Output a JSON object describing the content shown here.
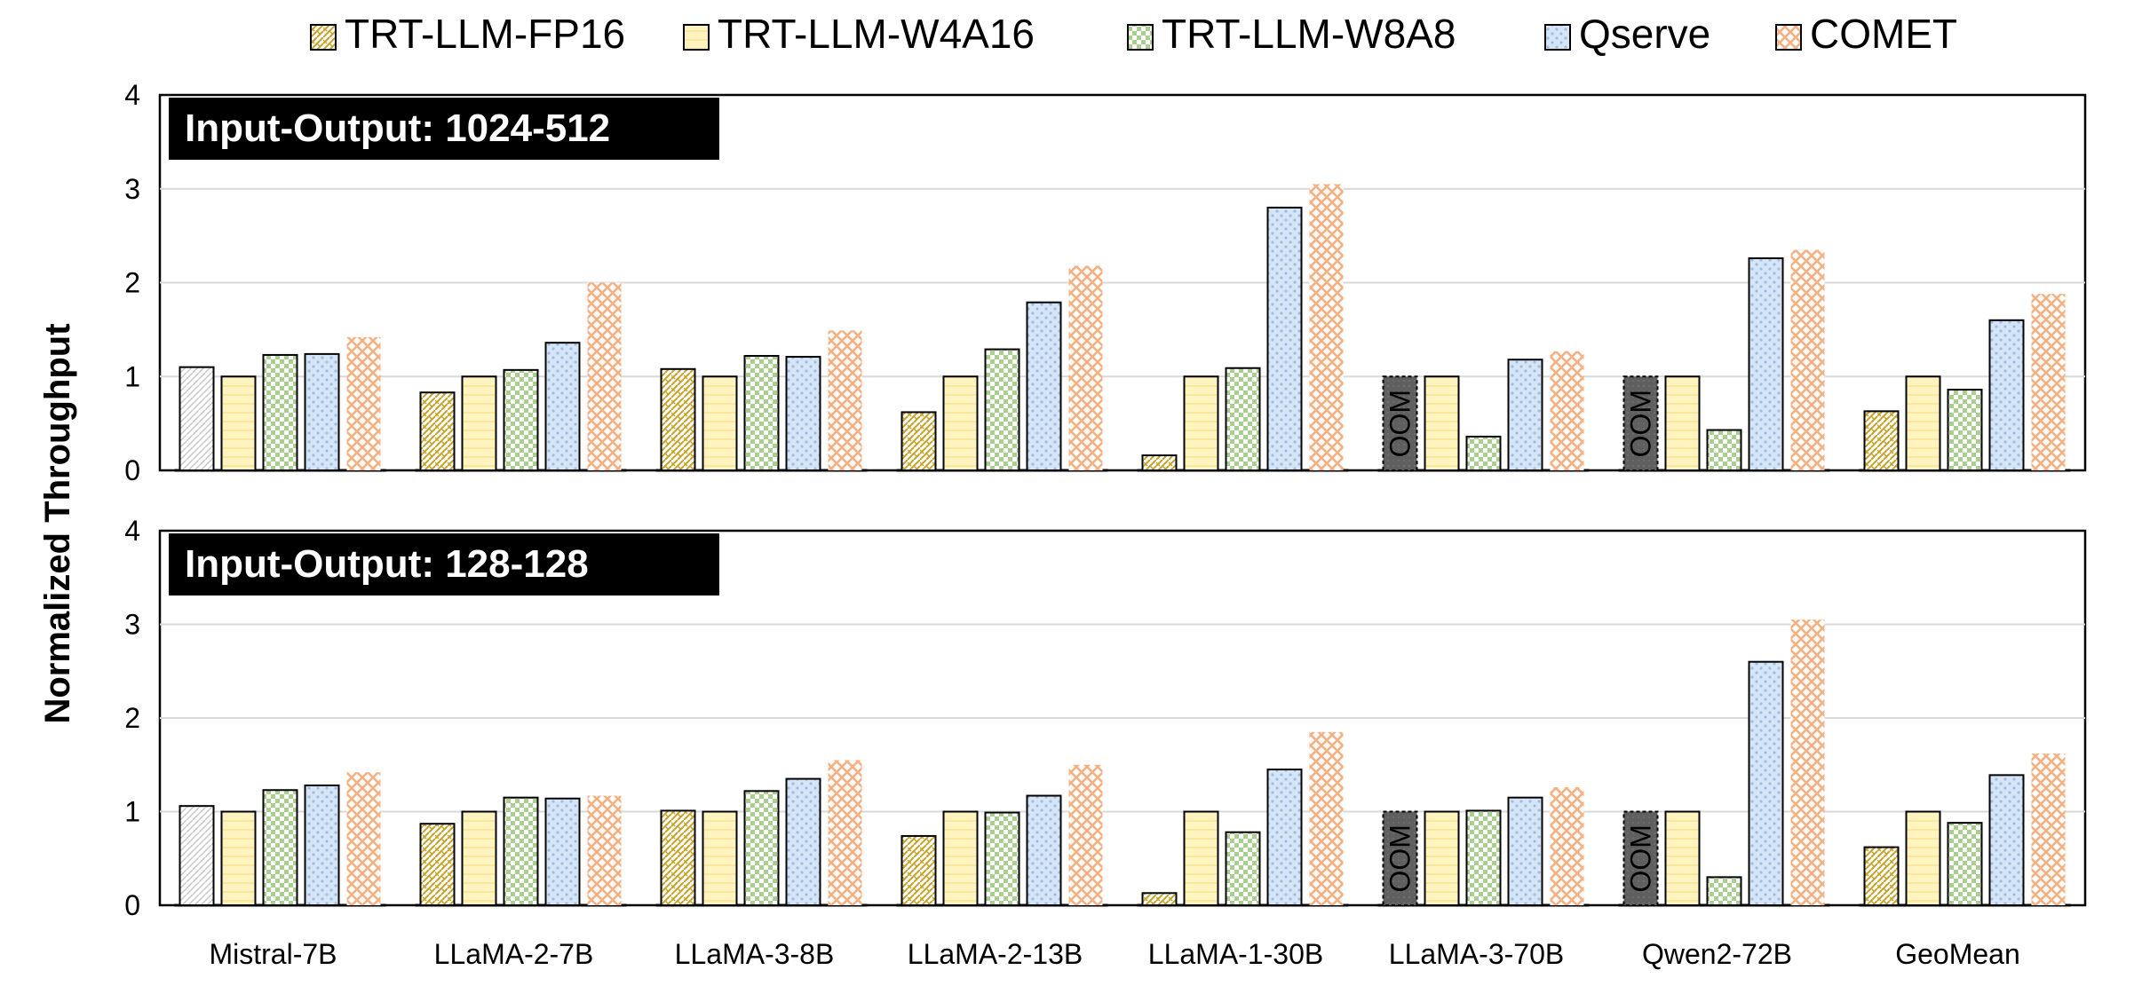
{
  "legend": [
    {
      "name": "TRT-LLM-FP16",
      "pattern": "pat-fp16",
      "swatch_color": "#c9a227"
    },
    {
      "name": "TRT-LLM-W4A16",
      "pattern": "pat-w4a16",
      "swatch_color": "#fff2b3"
    },
    {
      "name": "TRT-LLM-W8A8",
      "pattern": "pat-w8a8",
      "swatch_color": "#a8cf8e"
    },
    {
      "name": "Qserve",
      "pattern": "pat-qserve",
      "swatch_color": "#cfe0f3"
    },
    {
      "name": "COMET",
      "pattern": "pat-comet",
      "swatch_color": "#f4b183"
    }
  ],
  "y_axis_label": "Normalized Throughput",
  "oom_label": "OOM",
  "chart_data": [
    {
      "type": "bar",
      "title": "Input-Output: 1024-512",
      "ylim": [
        0,
        4
      ],
      "yticks": [
        "0",
        "1",
        "2",
        "3",
        "4"
      ],
      "grid": true,
      "legend_position": "top",
      "categories": [
        "Mistral-7B",
        "LLaMA-2-7B",
        "LLaMA-3-8B",
        "LLaMA-2-13B",
        "LLaMA-1-30B",
        "LLaMA-3-70B",
        "Qwen2-72B",
        "GeoMean"
      ],
      "series": [
        {
          "name": "TRT-LLM-FP16",
          "values": [
            1.1,
            0.83,
            1.08,
            0.62,
            0.16,
            "OOM",
            "OOM",
            0.63
          ]
        },
        {
          "name": "TRT-LLM-W4A16",
          "values": [
            1.0,
            1.0,
            1.0,
            1.0,
            1.0,
            1.0,
            1.0,
            1.0
          ]
        },
        {
          "name": "TRT-LLM-W8A8",
          "values": [
            1.23,
            1.07,
            1.22,
            1.29,
            1.09,
            0.36,
            0.43,
            0.86
          ]
        },
        {
          "name": "Qserve",
          "values": [
            1.24,
            1.36,
            1.21,
            1.79,
            2.8,
            1.18,
            2.26,
            1.6
          ]
        },
        {
          "name": "COMET",
          "values": [
            1.42,
            2.0,
            1.49,
            2.18,
            3.05,
            1.27,
            2.35,
            1.88
          ]
        }
      ]
    },
    {
      "type": "bar",
      "title": "Input-Output: 128-128",
      "ylim": [
        0,
        4
      ],
      "yticks": [
        "0",
        "1",
        "2",
        "3",
        "4"
      ],
      "grid": true,
      "legend_position": "top",
      "categories": [
        "Mistral-7B",
        "LLaMA-2-7B",
        "LLaMA-3-8B",
        "LLaMA-2-13B",
        "LLaMA-1-30B",
        "LLaMA-3-70B",
        "Qwen2-72B",
        "GeoMean"
      ],
      "series": [
        {
          "name": "TRT-LLM-FP16",
          "values": [
            1.06,
            0.87,
            1.01,
            0.74,
            0.13,
            "OOM",
            "OOM",
            0.62
          ]
        },
        {
          "name": "TRT-LLM-W4A16",
          "values": [
            1.0,
            1.0,
            1.0,
            1.0,
            1.0,
            1.0,
            1.0,
            1.0
          ]
        },
        {
          "name": "TRT-LLM-W8A8",
          "values": [
            1.23,
            1.15,
            1.22,
            0.99,
            0.78,
            1.01,
            0.3,
            0.88
          ]
        },
        {
          "name": "Qserve",
          "values": [
            1.28,
            1.14,
            1.35,
            1.17,
            1.45,
            1.15,
            2.6,
            1.39
          ]
        },
        {
          "name": "COMET",
          "values": [
            1.42,
            1.17,
            1.55,
            1.5,
            1.85,
            1.26,
            3.05,
            1.62
          ]
        }
      ]
    }
  ]
}
